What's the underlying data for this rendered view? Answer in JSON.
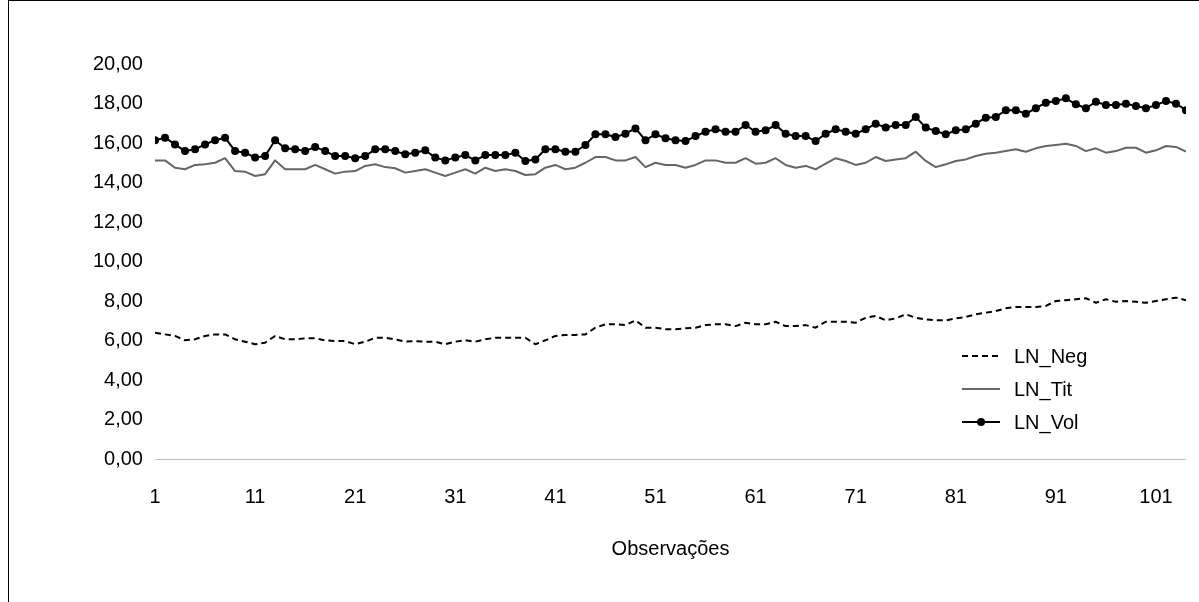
{
  "chart_data": {
    "type": "line",
    "xlabel": "Observações",
    "x": [
      1,
      2,
      3,
      4,
      5,
      6,
      7,
      8,
      9,
      10,
      11,
      12,
      13,
      14,
      15,
      16,
      17,
      18,
      19,
      20,
      21,
      22,
      23,
      24,
      25,
      26,
      27,
      28,
      29,
      30,
      31,
      32,
      33,
      34,
      35,
      36,
      37,
      38,
      39,
      40,
      41,
      42,
      43,
      44,
      45,
      46,
      47,
      48,
      49,
      50,
      51,
      52,
      53,
      54,
      55,
      56,
      57,
      58,
      59,
      60,
      61,
      62,
      63,
      64,
      65,
      66,
      67,
      68,
      69,
      70,
      71,
      72,
      73,
      74,
      75,
      76,
      77,
      78,
      79,
      80,
      81,
      82,
      83,
      84,
      85,
      86,
      87,
      88,
      89,
      90,
      91,
      92,
      93,
      94,
      95,
      96,
      97,
      98,
      99,
      100,
      101,
      102,
      103,
      104
    ],
    "xlim": [
      1,
      104
    ],
    "xticks": [
      1,
      11,
      21,
      31,
      41,
      51,
      61,
      71,
      81,
      91,
      101
    ],
    "ylim": [
      0,
      20
    ],
    "yticks": [
      {
        "value": 0,
        "label": "0,00"
      },
      {
        "value": 2,
        "label": "2,00"
      },
      {
        "value": 4,
        "label": "4,00"
      },
      {
        "value": 6,
        "label": "6,00"
      },
      {
        "value": 8,
        "label": "8,00"
      },
      {
        "value": 10,
        "label": "10,00"
      },
      {
        "value": 12,
        "label": "12,00"
      },
      {
        "value": 14,
        "label": "14,00"
      },
      {
        "value": 16,
        "label": "16,00"
      },
      {
        "value": 18,
        "label": "18,00"
      },
      {
        "value": 20,
        "label": "20,00"
      }
    ],
    "grid": false,
    "legend": "bottom right",
    "series": [
      {
        "name": "LN_Neg",
        "color": "#000000",
        "line_style": "dashed",
        "marker": "none",
        "values": [
          6.39,
          6.31,
          6.23,
          6.01,
          6.06,
          6.23,
          6.31,
          6.31,
          6.06,
          5.94,
          5.81,
          5.89,
          6.23,
          6.06,
          6.06,
          6.11,
          6.11,
          6.01,
          5.97,
          5.97,
          5.81,
          5.94,
          6.14,
          6.14,
          6.06,
          5.94,
          5.97,
          5.94,
          5.94,
          5.81,
          5.94,
          6.01,
          5.94,
          6.06,
          6.14,
          6.14,
          6.14,
          6.14,
          5.81,
          6.01,
          6.23,
          6.28,
          6.28,
          6.31,
          6.65,
          6.82,
          6.82,
          6.78,
          7.02,
          6.65,
          6.65,
          6.57,
          6.57,
          6.62,
          6.65,
          6.78,
          6.82,
          6.82,
          6.73,
          6.9,
          6.82,
          6.82,
          6.95,
          6.73,
          6.73,
          6.78,
          6.65,
          6.95,
          6.95,
          6.95,
          6.9,
          7.15,
          7.24,
          7.02,
          7.12,
          7.33,
          7.15,
          7.07,
          7.02,
          7.02,
          7.12,
          7.19,
          7.33,
          7.41,
          7.49,
          7.63,
          7.7,
          7.7,
          7.7,
          7.75,
          8.0,
          8.04,
          8.09,
          8.14,
          7.91,
          8.09,
          7.96,
          8.0,
          7.96,
          7.91,
          8.0,
          8.09,
          8.17,
          8.04
        ]
      },
      {
        "name": "LN_Tit",
        "color": "#666666",
        "line_style": "solid",
        "marker": "none",
        "values": [
          15.12,
          15.12,
          14.75,
          14.67,
          14.89,
          14.92,
          15.0,
          15.23,
          14.58,
          14.55,
          14.33,
          14.42,
          15.12,
          14.67,
          14.67,
          14.67,
          14.89,
          14.67,
          14.45,
          14.55,
          14.58,
          14.84,
          14.92,
          14.78,
          14.72,
          14.5,
          14.58,
          14.67,
          14.5,
          14.33,
          14.5,
          14.67,
          14.45,
          14.75,
          14.58,
          14.67,
          14.58,
          14.38,
          14.42,
          14.75,
          14.89,
          14.67,
          14.75,
          15.0,
          15.29,
          15.29,
          15.12,
          15.12,
          15.29,
          14.78,
          15.0,
          14.89,
          14.89,
          14.75,
          14.89,
          15.12,
          15.12,
          15.0,
          15.0,
          15.23,
          14.95,
          15.0,
          15.23,
          14.89,
          14.75,
          14.84,
          14.67,
          14.95,
          15.23,
          15.09,
          14.89,
          15.0,
          15.29,
          15.09,
          15.17,
          15.23,
          15.56,
          15.09,
          14.78,
          14.92,
          15.09,
          15.17,
          15.34,
          15.46,
          15.51,
          15.59,
          15.68,
          15.56,
          15.73,
          15.85,
          15.9,
          15.96,
          15.85,
          15.59,
          15.73,
          15.51,
          15.59,
          15.76,
          15.76,
          15.51,
          15.63,
          15.85,
          15.8,
          15.56
        ]
      },
      {
        "name": "LN_Vol",
        "color": "#000000",
        "line_style": "solid",
        "marker": "circle",
        "values": [
          16.14,
          16.27,
          15.93,
          15.59,
          15.68,
          15.93,
          16.14,
          16.27,
          15.59,
          15.51,
          15.26,
          15.34,
          16.14,
          15.73,
          15.68,
          15.59,
          15.8,
          15.59,
          15.34,
          15.34,
          15.23,
          15.34,
          15.68,
          15.68,
          15.59,
          15.43,
          15.51,
          15.63,
          15.26,
          15.12,
          15.26,
          15.39,
          15.12,
          15.39,
          15.39,
          15.39,
          15.51,
          15.09,
          15.17,
          15.68,
          15.68,
          15.56,
          15.56,
          15.9,
          16.44,
          16.44,
          16.3,
          16.47,
          16.74,
          16.14,
          16.44,
          16.24,
          16.14,
          16.1,
          16.35,
          16.57,
          16.69,
          16.57,
          16.57,
          16.91,
          16.57,
          16.64,
          16.91,
          16.47,
          16.35,
          16.35,
          16.1,
          16.47,
          16.69,
          16.57,
          16.47,
          16.69,
          16.98,
          16.78,
          16.91,
          16.91,
          17.32,
          16.78,
          16.61,
          16.44,
          16.64,
          16.69,
          16.98,
          17.28,
          17.32,
          17.66,
          17.66,
          17.48,
          17.76,
          18.04,
          18.13,
          18.26,
          17.96,
          17.76,
          18.09,
          17.92,
          17.92,
          17.99,
          17.87,
          17.76,
          17.92,
          18.13,
          17.99,
          17.66
        ]
      }
    ]
  }
}
